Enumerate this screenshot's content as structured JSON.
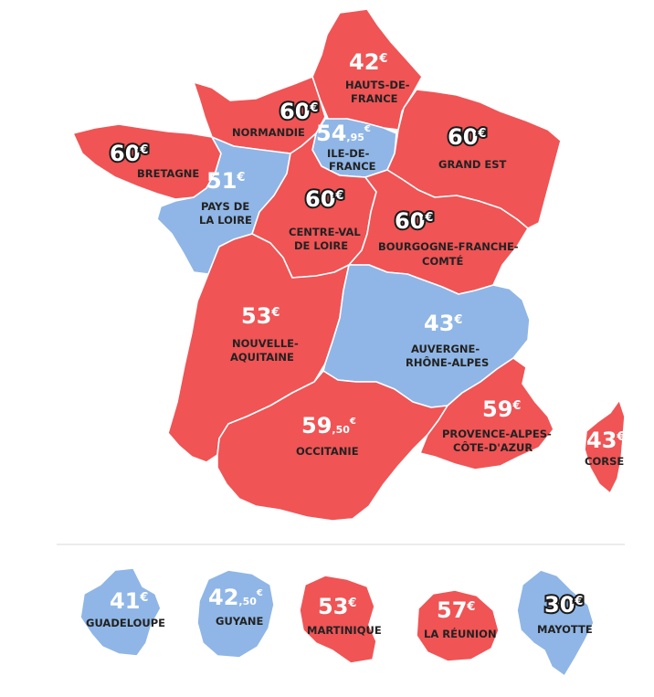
{
  "colors": {
    "red": "#f05455",
    "blue": "#8fb6e6",
    "divider": "#e6e6e6",
    "label": "#222222"
  },
  "regions": {
    "hauts_de_france": {
      "price": "42",
      "euro": "€",
      "name_line1": "HAUTS-DE-",
      "name_line2": "FRANCE",
      "color": "red"
    },
    "normandie": {
      "price": "60",
      "euro": "€",
      "name": "NORMANDIE",
      "color": "red"
    },
    "ile_de_france": {
      "price": "54",
      "cents": ",95",
      "euro": "€",
      "name_line1": "ILE-DE-",
      "name_line2": "FRANCE",
      "color": "blue"
    },
    "grand_est": {
      "price": "60",
      "euro": "€",
      "name": "GRAND EST",
      "color": "red"
    },
    "bretagne": {
      "price": "60",
      "euro": "€",
      "name": "BRETAGNE",
      "color": "red"
    },
    "pays_de_la_loire": {
      "price": "51",
      "euro": "€",
      "name_line1": "PAYS DE",
      "name_line2": "LA LOIRE",
      "color": "blue"
    },
    "centre_val_de_loire": {
      "price": "60",
      "euro": "€",
      "name_line1": "CENTRE-VAL",
      "name_line2": "DE LOIRE",
      "color": "red"
    },
    "bourgogne_franche_comte": {
      "price": "60",
      "euro": "€",
      "name_line1": "BOURGOGNE-FRANCHE-",
      "name_line2": "COMTÉ",
      "color": "red"
    },
    "nouvelle_aquitaine": {
      "price": "53",
      "euro": "€",
      "name_line1": "NOUVELLE-",
      "name_line2": "AQUITAINE",
      "color": "red"
    },
    "auvergne_rhone_alpes": {
      "price": "43",
      "euro": "€",
      "name_line1": "AUVERGNE-",
      "name_line2": "RHÔNE-ALPES",
      "color": "blue"
    },
    "occitanie": {
      "price": "59",
      "cents": ",50",
      "euro": "€",
      "name": "OCCITANIE",
      "color": "red"
    },
    "provence_alpes_cote_dazur": {
      "price": "59",
      "euro": "€",
      "name_line1": "PROVENCE-ALPES-",
      "name_line2": "CÔTE-D'AZUR",
      "color": "red"
    },
    "corse": {
      "price": "43",
      "euro": "€",
      "name": "CORSE",
      "color": "red"
    }
  },
  "overseas": {
    "guadeloupe": {
      "price": "41",
      "euro": "€",
      "name": "GUADELOUPE",
      "color": "blue"
    },
    "guyane": {
      "price": "42",
      "cents": ",50",
      "euro": "€",
      "name": "GUYANE",
      "color": "blue"
    },
    "martinique": {
      "price": "53",
      "euro": "€",
      "name": "MARTINIQUE",
      "color": "red"
    },
    "la_reunion": {
      "price": "57",
      "euro": "€",
      "name": "LA RÉUNION",
      "color": "red"
    },
    "mayotte": {
      "price": "30",
      "euro": "€",
      "name": "MAYOTTE",
      "color": "blue"
    }
  }
}
